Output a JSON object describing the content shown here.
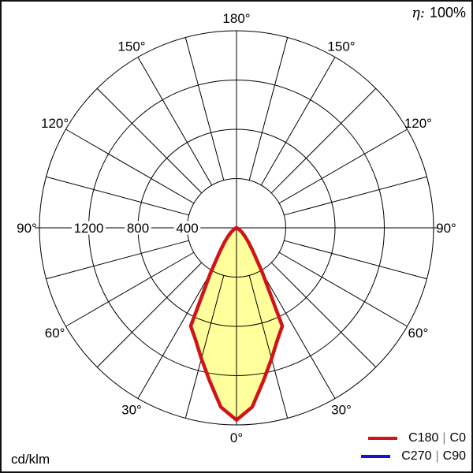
{
  "header": {
    "efficiency_symbol": "η:",
    "efficiency_value": "100%"
  },
  "footer": {
    "unit": "cd/klm"
  },
  "legend": {
    "entries": [
      {
        "plane_a": "C180",
        "separator": "|",
        "plane_b": "C0",
        "color": "#d01418"
      },
      {
        "plane_a": "C270",
        "separator": "|",
        "plane_b": "C90",
        "color": "#1117c6"
      }
    ]
  },
  "chart_data": {
    "type": "polar",
    "subtype": "luminous-intensity-distribution",
    "unit": "cd/klm",
    "efficiency_percent": 100,
    "radial_axis": {
      "ring_values": [
        400,
        800,
        1200,
        1600
      ],
      "labeled_rings": [
        "1200",
        "800",
        "400"
      ],
      "max_value": 1600
    },
    "angular_axis": {
      "spoke_step_deg": 15,
      "label_step_deg": 30,
      "zero_position": "bottom",
      "labels": [
        {
          "text": "180°",
          "angle": 180
        },
        {
          "text": "150°",
          "angle": -150
        },
        {
          "text": "150°",
          "angle": 150
        },
        {
          "text": "120°",
          "angle": -120
        },
        {
          "text": "120°",
          "angle": 120
        },
        {
          "text": "90°",
          "angle": -90
        },
        {
          "text": "90°",
          "angle": 90
        },
        {
          "text": "60°",
          "angle": -60
        },
        {
          "text": "60°",
          "angle": 60
        },
        {
          "text": "30°",
          "angle": -30
        },
        {
          "text": "30°",
          "angle": 30
        },
        {
          "text": "0°",
          "angle": 0
        }
      ]
    },
    "gamma_deg": [
      0,
      5,
      10,
      15,
      20,
      25,
      30,
      35,
      40,
      45,
      50,
      55,
      60,
      65,
      70,
      75,
      80,
      85,
      90
    ],
    "series": [
      {
        "name": "C180 | C0",
        "color": "#d01418",
        "fill_color": "#ffff9c",
        "values_cd_per_klm": [
          1560,
          1460,
          1260,
          1100,
          970,
          880,
          420,
          235,
          150,
          95,
          60,
          35,
          18,
          8,
          3,
          1,
          0,
          0,
          0
        ]
      },
      {
        "name": "C270 | C90",
        "color": "#1117c6",
        "fill_color": null,
        "values_cd_per_klm": [
          1560,
          1460,
          1260,
          1100,
          970,
          880,
          420,
          235,
          150,
          95,
          60,
          35,
          18,
          8,
          3,
          1,
          0,
          0,
          0
        ],
        "note": "coincides with C180|C0 curve, hidden beneath it"
      }
    ],
    "legend_position": "bottom-right",
    "grid": true
  }
}
